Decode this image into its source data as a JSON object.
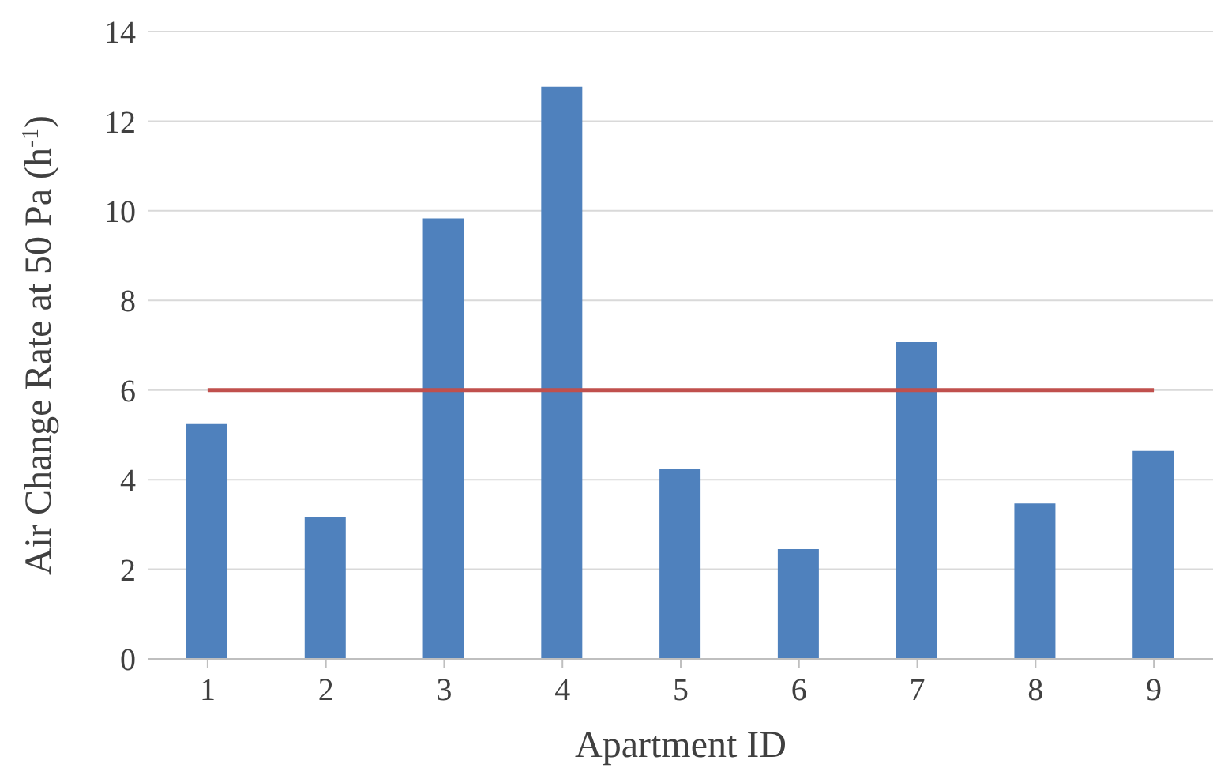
{
  "chart_data": {
    "type": "bar",
    "xlabel": "Apartment ID",
    "ylabel": "Air Change Rate at 50 Pa (h$^{-1}$)",
    "categories": [
      "1",
      "2",
      "3",
      "4",
      "5",
      "6",
      "7",
      "8",
      "9"
    ],
    "series": [
      {
        "color": "#4f81bd",
        "values": [
          5.24,
          3.17,
          9.83,
          12.77,
          4.25,
          2.45,
          7.07,
          3.47,
          4.64
        ]
      },
      {
        "type": "line",
        "color": "#c0504d",
        "values": [
          6,
          6,
          6,
          6,
          6,
          6,
          6,
          6,
          6
        ]
      }
    ],
    "ylim": [
      0,
      14
    ],
    "yticks": [
      0,
      2,
      4,
      6,
      8,
      10,
      12,
      14
    ],
    "grid": "y",
    "legend": false,
    "marker": "none"
  }
}
